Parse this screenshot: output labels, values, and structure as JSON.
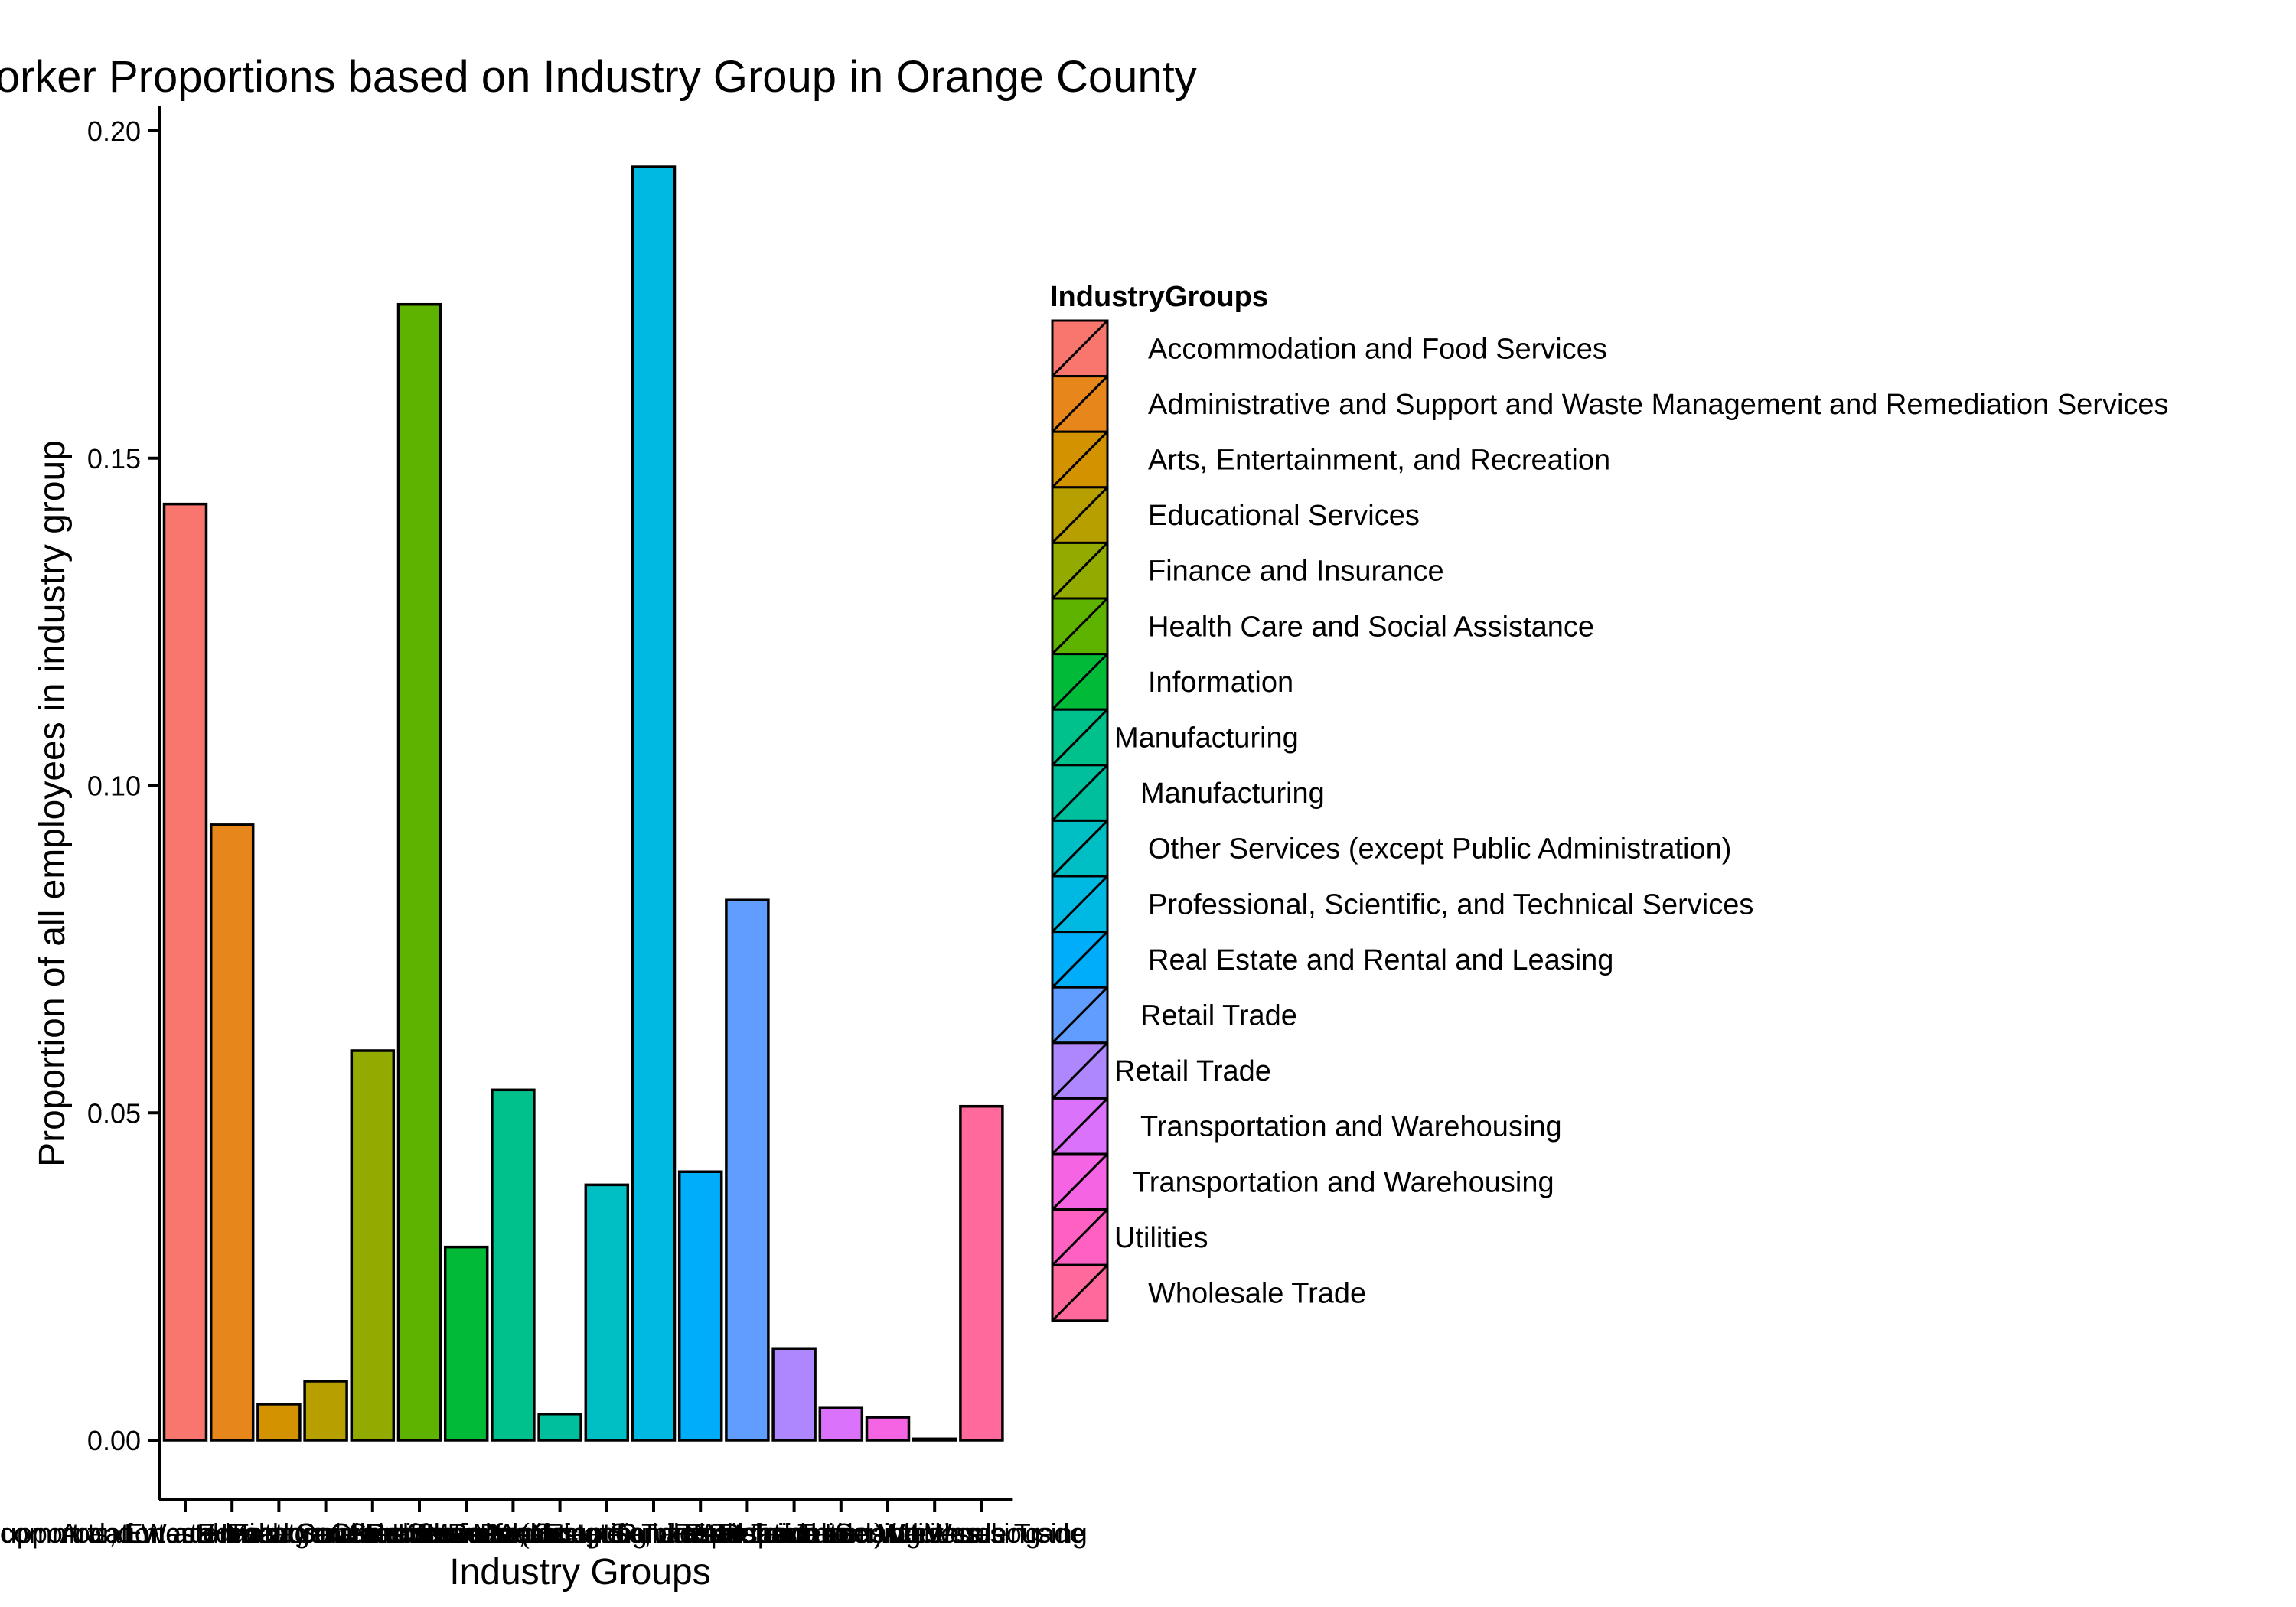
{
  "chart_data": {
    "type": "bar",
    "title": "Worker Proportions based on Industry Group in Orange County",
    "xlabel": "Industry Groups",
    "ylabel": "Proportion of all employees in industry group",
    "ylim": [
      0,
      0.205
    ],
    "yticks": [
      0.0,
      0.05,
      0.1,
      0.15,
      0.2
    ],
    "ytick_labels": [
      "0.00",
      "0.05",
      "0.10",
      "0.15",
      "0.20"
    ],
    "grid": false,
    "legend_position": "right",
    "legend_title": "IndustryGroups",
    "legend_entries": [
      "Accommodation and Food Services",
      "Administrative and Support and Waste Management and Remediation Services",
      "Arts, Entertainment, and Recreation",
      "Educational Services",
      "Finance and Insurance",
      "Health Care and Social Assistance",
      "Information",
      "Manufacturing",
      "Manufacturing",
      "Other Services (except Public Administration)",
      "Professional, Scientific, and Technical Services",
      "Real Estate and Rental and Leasing",
      "Retail Trade",
      "Retail Trade",
      "Transportation and Warehousing",
      "Transportation and Warehousing",
      "Utilities",
      "Wholesale Trade"
    ],
    "categories": [
      "Accommodation and Food Services",
      "Administrative and Support and Waste Management and Remediation Services",
      "Arts, Entertainment, and Recreation",
      "Educational Services",
      "Finance and Insurance",
      "Health Care and Social Assistance",
      "Information",
      "Manufacturing",
      "Manufacturing",
      "Other Services (except Public Administration)",
      "Professional, Scientific, and Technical Services",
      "Real Estate and Rental and Leasing",
      "Retail Trade",
      "Retail Trade",
      "Transportation and Warehousing",
      "Transportation and Warehousing",
      "Utilities",
      "Wholesale Trade"
    ],
    "values": [
      0.143,
      0.094,
      0.0055,
      0.009,
      0.0595,
      0.1735,
      0.0295,
      0.0535,
      0.004,
      0.039,
      0.1945,
      0.041,
      0.0825,
      0.014,
      0.005,
      0.0035,
      0.0002,
      0.051
    ],
    "colors": [
      "#F8766D",
      "#E7861B",
      "#D39200",
      "#B79F00",
      "#93AA00",
      "#5EB300",
      "#00BA38",
      "#00C08B",
      "#00BF9C",
      "#00BFC4",
      "#00B9E3",
      "#00ADFA",
      "#619CFF",
      "#AE87FF",
      "#DB72FB",
      "#F564E3",
      "#FF61C3",
      "#FF699C"
    ]
  }
}
